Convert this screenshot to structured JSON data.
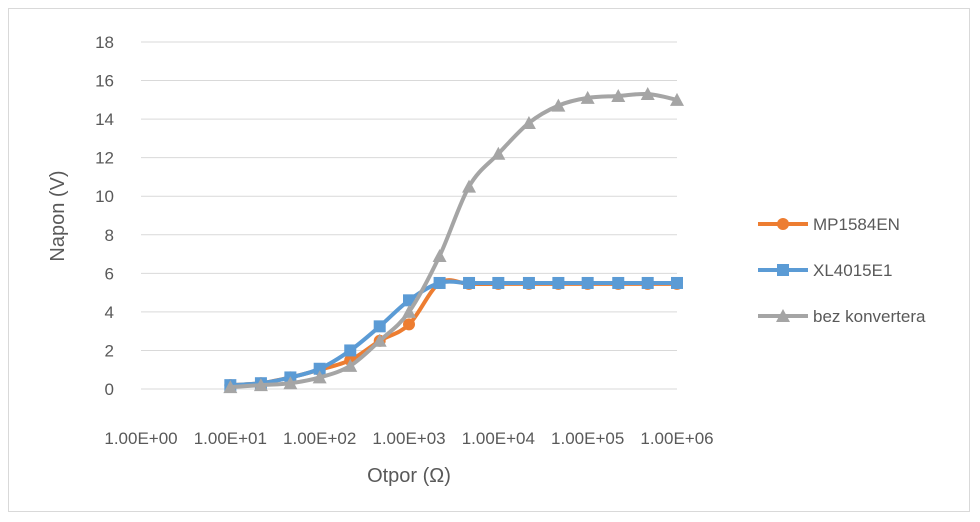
{
  "chart_data": {
    "type": "line",
    "title": "",
    "xlabel": "Otpor (Ω)",
    "ylabel": "Napon (V)",
    "x_scale": "log",
    "xlim": [
      1,
      1000000
    ],
    "ylim": [
      0,
      18
    ],
    "x_ticks": [
      1,
      10,
      100,
      1000,
      10000,
      100000,
      1000000
    ],
    "x_tick_labels": [
      "1.00E+00",
      "1.00E+01",
      "1.00E+02",
      "1.00E+03",
      "1.00E+04",
      "1.00E+05",
      "1.00E+06"
    ],
    "y_ticks": [
      0,
      2,
      4,
      6,
      8,
      10,
      12,
      14,
      16,
      18
    ],
    "y_tick_labels": [
      "0",
      "2",
      "4",
      "6",
      "8",
      "10",
      "12",
      "14",
      "16",
      "18"
    ],
    "grid": "horizontal",
    "legend": "right",
    "series": [
      {
        "name": "MP1584EN",
        "color": "#ed7d31",
        "marker": "circle",
        "x": [
          10,
          22,
          47,
          100,
          220,
          470,
          1000,
          2200,
          4700,
          10000,
          22000,
          47000,
          100000,
          220000,
          470000,
          1000000
        ],
        "y": [
          0.2,
          0.3,
          0.6,
          1.0,
          1.5,
          2.5,
          3.35,
          5.5,
          5.45,
          5.45,
          5.45,
          5.45,
          5.45,
          5.45,
          5.45,
          5.45
        ]
      },
      {
        "name": "XL4015E1",
        "color": "#5b9bd5",
        "marker": "square",
        "x": [
          10,
          22,
          47,
          100,
          220,
          470,
          1000,
          2200,
          4700,
          10000,
          22000,
          47000,
          100000,
          220000,
          470000,
          1000000
        ],
        "y": [
          0.2,
          0.3,
          0.6,
          1.05,
          2.0,
          3.25,
          4.6,
          5.5,
          5.5,
          5.5,
          5.5,
          5.5,
          5.5,
          5.5,
          5.5,
          5.5
        ]
      },
      {
        "name": "bez konvertera",
        "color": "#a5a5a5",
        "marker": "triangle",
        "x": [
          10,
          22,
          47,
          100,
          220,
          470,
          1000,
          2200,
          4700,
          10000,
          22000,
          47000,
          100000,
          220000,
          470000,
          1000000
        ],
        "y": [
          0.1,
          0.2,
          0.3,
          0.6,
          1.2,
          2.5,
          4.0,
          6.9,
          10.5,
          12.2,
          13.8,
          14.7,
          15.1,
          15.2,
          15.3,
          15.0
        ]
      }
    ]
  }
}
